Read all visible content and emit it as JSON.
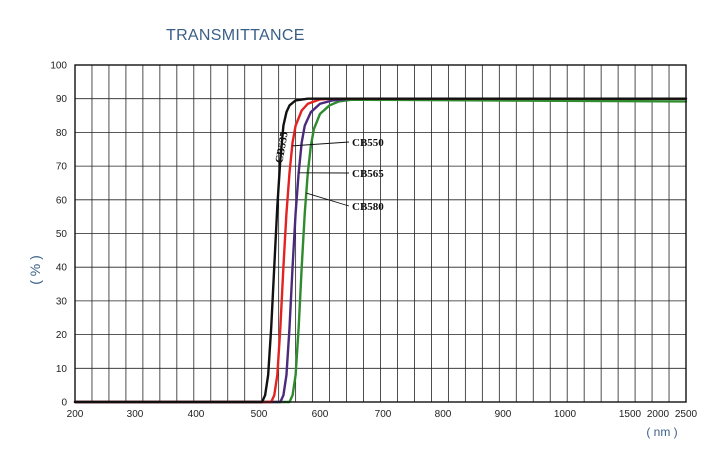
{
  "chart_data": {
    "type": "line",
    "title": "TRANSMITTANCE",
    "xlabel": "( nm )",
    "ylabel": "( % )",
    "ylim": [
      0,
      100
    ],
    "y_ticks": [
      0,
      10,
      20,
      30,
      40,
      50,
      60,
      70,
      80,
      90,
      100
    ],
    "x_ticks": [
      200,
      300,
      400,
      500,
      600,
      700,
      800,
      900,
      1000,
      1500,
      2000,
      2500
    ],
    "grid": true,
    "series": [
      {
        "name": "CB535",
        "color": "#111111",
        "points": [
          [
            200,
            0
          ],
          [
            505,
            0
          ],
          [
            510,
            2
          ],
          [
            515,
            8
          ],
          [
            520,
            22
          ],
          [
            525,
            40
          ],
          [
            530,
            58
          ],
          [
            535,
            72
          ],
          [
            540,
            82
          ],
          [
            545,
            86
          ],
          [
            550,
            88
          ],
          [
            560,
            89.5
          ],
          [
            580,
            90
          ],
          [
            2500,
            90
          ]
        ]
      },
      {
        "name": "CB550",
        "color": "#e32222",
        "points": [
          [
            200,
            0
          ],
          [
            520,
            0
          ],
          [
            525,
            2
          ],
          [
            530,
            8
          ],
          [
            535,
            22
          ],
          [
            540,
            40
          ],
          [
            545,
            56
          ],
          [
            550,
            68
          ],
          [
            555,
            77
          ],
          [
            560,
            82
          ],
          [
            570,
            86.5
          ],
          [
            580,
            88.5
          ],
          [
            600,
            89.8
          ],
          [
            620,
            90
          ],
          [
            2500,
            90
          ]
        ]
      },
      {
        "name": "CB565",
        "color": "#4a2a7a",
        "points": [
          [
            200,
            0
          ],
          [
            535,
            0
          ],
          [
            540,
            2
          ],
          [
            545,
            8
          ],
          [
            550,
            22
          ],
          [
            555,
            40
          ],
          [
            560,
            56
          ],
          [
            565,
            68
          ],
          [
            570,
            77
          ],
          [
            575,
            82
          ],
          [
            585,
            86
          ],
          [
            600,
            88.5
          ],
          [
            620,
            89.5
          ],
          [
            650,
            90
          ],
          [
            2500,
            90
          ]
        ]
      },
      {
        "name": "CB580",
        "color": "#2e8b2e",
        "points": [
          [
            200,
            0
          ],
          [
            550,
            0
          ],
          [
            555,
            2
          ],
          [
            560,
            8
          ],
          [
            565,
            22
          ],
          [
            570,
            40
          ],
          [
            575,
            56
          ],
          [
            580,
            68
          ],
          [
            585,
            76
          ],
          [
            590,
            81
          ],
          [
            600,
            85.5
          ],
          [
            615,
            88
          ],
          [
            630,
            89.2
          ],
          [
            650,
            89.7
          ],
          [
            2500,
            89.2
          ]
        ]
      }
    ]
  }
}
